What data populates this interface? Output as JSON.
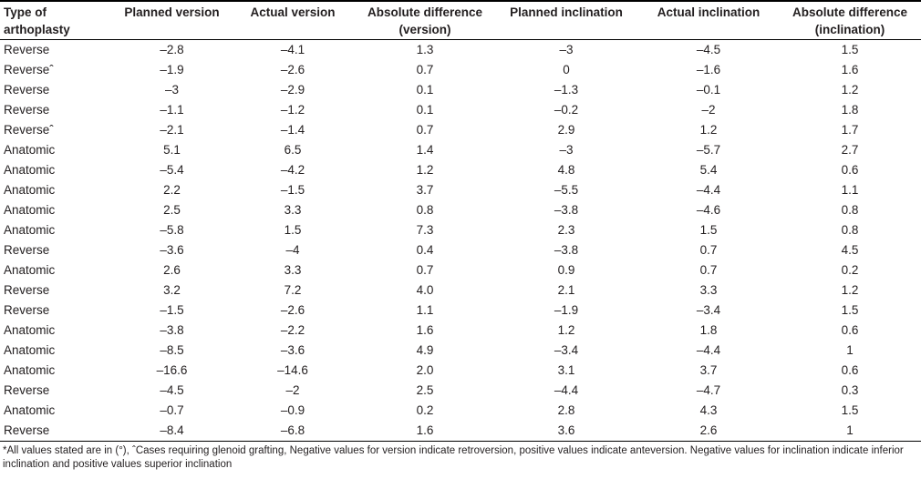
{
  "table": {
    "columns": [
      {
        "id": "type",
        "label": "Type of\narthoplasty"
      },
      {
        "id": "planned_version",
        "label": "Planned version"
      },
      {
        "id": "actual_version",
        "label": "Actual version"
      },
      {
        "id": "abs_diff_version",
        "label": "Absolute difference\n(version)"
      },
      {
        "id": "planned_inclination",
        "label": "Planned inclination"
      },
      {
        "id": "actual_inclination",
        "label": "Actual inclination"
      },
      {
        "id": "abs_diff_inclination",
        "label": "Absolute difference\n(inclination)"
      }
    ],
    "rows": [
      [
        "Reverse",
        "–2.8",
        "–4.1",
        "1.3",
        "–3",
        "–4.5",
        "1.5"
      ],
      [
        "Reverseˆ",
        "–1.9",
        "–2.6",
        "0.7",
        "0",
        "–1.6",
        "1.6"
      ],
      [
        "Reverse",
        "–3",
        "–2.9",
        "0.1",
        "–1.3",
        "–0.1",
        "1.2"
      ],
      [
        "Reverse",
        "–1.1",
        "–1.2",
        "0.1",
        "–0.2",
        "–2",
        "1.8"
      ],
      [
        "Reverseˆ",
        "–2.1",
        "–1.4",
        "0.7",
        "2.9",
        "1.2",
        "1.7"
      ],
      [
        "Anatomic",
        "5.1",
        "6.5",
        "1.4",
        "–3",
        "–5.7",
        "2.7"
      ],
      [
        "Anatomic",
        "–5.4",
        "–4.2",
        "1.2",
        "4.8",
        "5.4",
        "0.6"
      ],
      [
        "Anatomic",
        "2.2",
        "–1.5",
        "3.7",
        "–5.5",
        "–4.4",
        "1.1"
      ],
      [
        "Anatomic",
        "2.5",
        "3.3",
        "0.8",
        "–3.8",
        "–4.6",
        "0.8"
      ],
      [
        "Anatomic",
        "–5.8",
        "1.5",
        "7.3",
        "2.3",
        "1.5",
        "0.8"
      ],
      [
        "Reverse",
        "–3.6",
        "–4",
        "0.4",
        "–3.8",
        "0.7",
        "4.5"
      ],
      [
        "Anatomic",
        "2.6",
        "3.3",
        "0.7",
        "0.9",
        "0.7",
        "0.2"
      ],
      [
        "Reverse",
        "3.2",
        "7.2",
        "4.0",
        "2.1",
        "3.3",
        "1.2"
      ],
      [
        "Reverse",
        "–1.5",
        "–2.6",
        "1.1",
        "–1.9",
        "–3.4",
        "1.5"
      ],
      [
        "Anatomic",
        "–3.8",
        "–2.2",
        "1.6",
        "1.2",
        "1.8",
        "0.6"
      ],
      [
        "Anatomic",
        "–8.5",
        "–3.6",
        "4.9",
        "–3.4",
        "–4.4",
        "1"
      ],
      [
        "Anatomic",
        "–16.6",
        "–14.6",
        "2.0",
        "3.1",
        "3.7",
        "0.6"
      ],
      [
        "Reverse",
        "–4.5",
        "–2",
        "2.5",
        "–4.4",
        "–4.7",
        "0.3"
      ],
      [
        "Anatomic",
        "–0.7",
        "–0.9",
        "0.2",
        "2.8",
        "4.3",
        "1.5"
      ],
      [
        "Reverse",
        "–8.4",
        "–6.8",
        "1.6",
        "3.6",
        "2.6",
        "1"
      ]
    ]
  },
  "footnote": {
    "text": "*All values stated are in (°), ˆCases requiring glenoid grafting, Negative values for version indicate retroversion, positive values indicate anteversion. Negative values for inclination indicate inferior inclination and positive values superior inclination"
  }
}
